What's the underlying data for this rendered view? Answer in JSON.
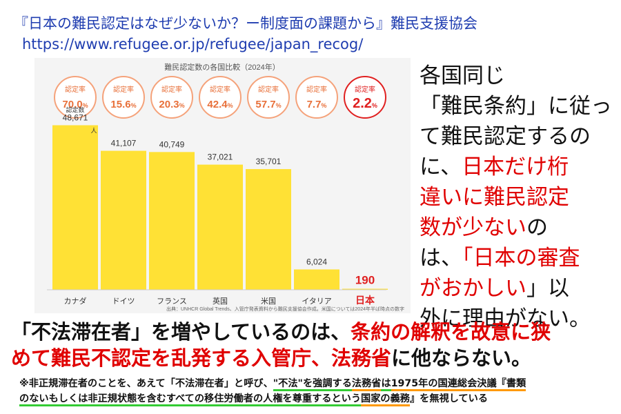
{
  "source": {
    "title": "『日本の難民認定はなぜ少ないか？ー制度面の課題から』難民支援協会",
    "url": "https://www.refugee.or.jp/refugee/japan_recog/"
  },
  "chart_data": {
    "type": "bar",
    "title": "難民認定数の各国比較（2024年）",
    "categories": [
      "カナダ",
      "ドイツ",
      "フランス",
      "英国",
      "米国",
      "イタリア",
      "日本"
    ],
    "values": [
      48671,
      41107,
      40749,
      37021,
      35701,
      6024,
      190
    ],
    "value_labels": [
      "48,671",
      "41,107",
      "40,749",
      "37,021",
      "35,701",
      "6,024",
      "190"
    ],
    "rates": [
      "70.0",
      "15.6",
      "20.3",
      "42.4",
      "57.7",
      "7.7",
      "2.2"
    ],
    "rate_label": "認定率",
    "rate_unit": "%",
    "first_bar_label": "認定数",
    "first_bar_unit": "人",
    "footnote": "出典：UNHCR Global Trends、入管庁発表資料から難民支援協会作成。米国については2024年半ば時点の数字",
    "bar_color": "#ffe135",
    "highlight_color": "#e02020",
    "rate_circle_color": "#f5a27a",
    "rate_text_color": "#e8703a",
    "highlight_index": 6,
    "ylim": [
      0,
      50000
    ]
  },
  "commentary": {
    "line1": "各国同じ",
    "line2": "「難民条約」に従っ",
    "line3": "て難民認定するの",
    "line4_a": "に、",
    "line4_b": "日本だけ桁",
    "line5": "違いに難民認定",
    "line6_a": "数が少ない",
    "line6_b": "の",
    "line7_a": "は、",
    "line7_b": "「日本の審査",
    "line8_a": "がおかしい",
    "line8_b": "」以",
    "line9": "外に理由がない。"
  },
  "message": {
    "line1_a": "「不法滞在者」を増やしているのは、",
    "line1_b": "条約の解釈を故意に狭",
    "line2_a": "めて難民不認定を乱発する入管庁、法務省",
    "line2_b": "に他ならない。"
  },
  "note": {
    "p1": "※非正規滞在者のことを、あえて「不法滞在者」と呼び、",
    "p2": "\"不法\"",
    "p3": "を強調する",
    "p4": "法務省",
    "p5": "は",
    "p6": "1975年の国連総会決議『書類",
    "p7": "のないもしくは非正規状態を含むすべての移住労働者の人権を尊重するという",
    "p8": "国家の義務",
    "p9": "』を無視している"
  }
}
